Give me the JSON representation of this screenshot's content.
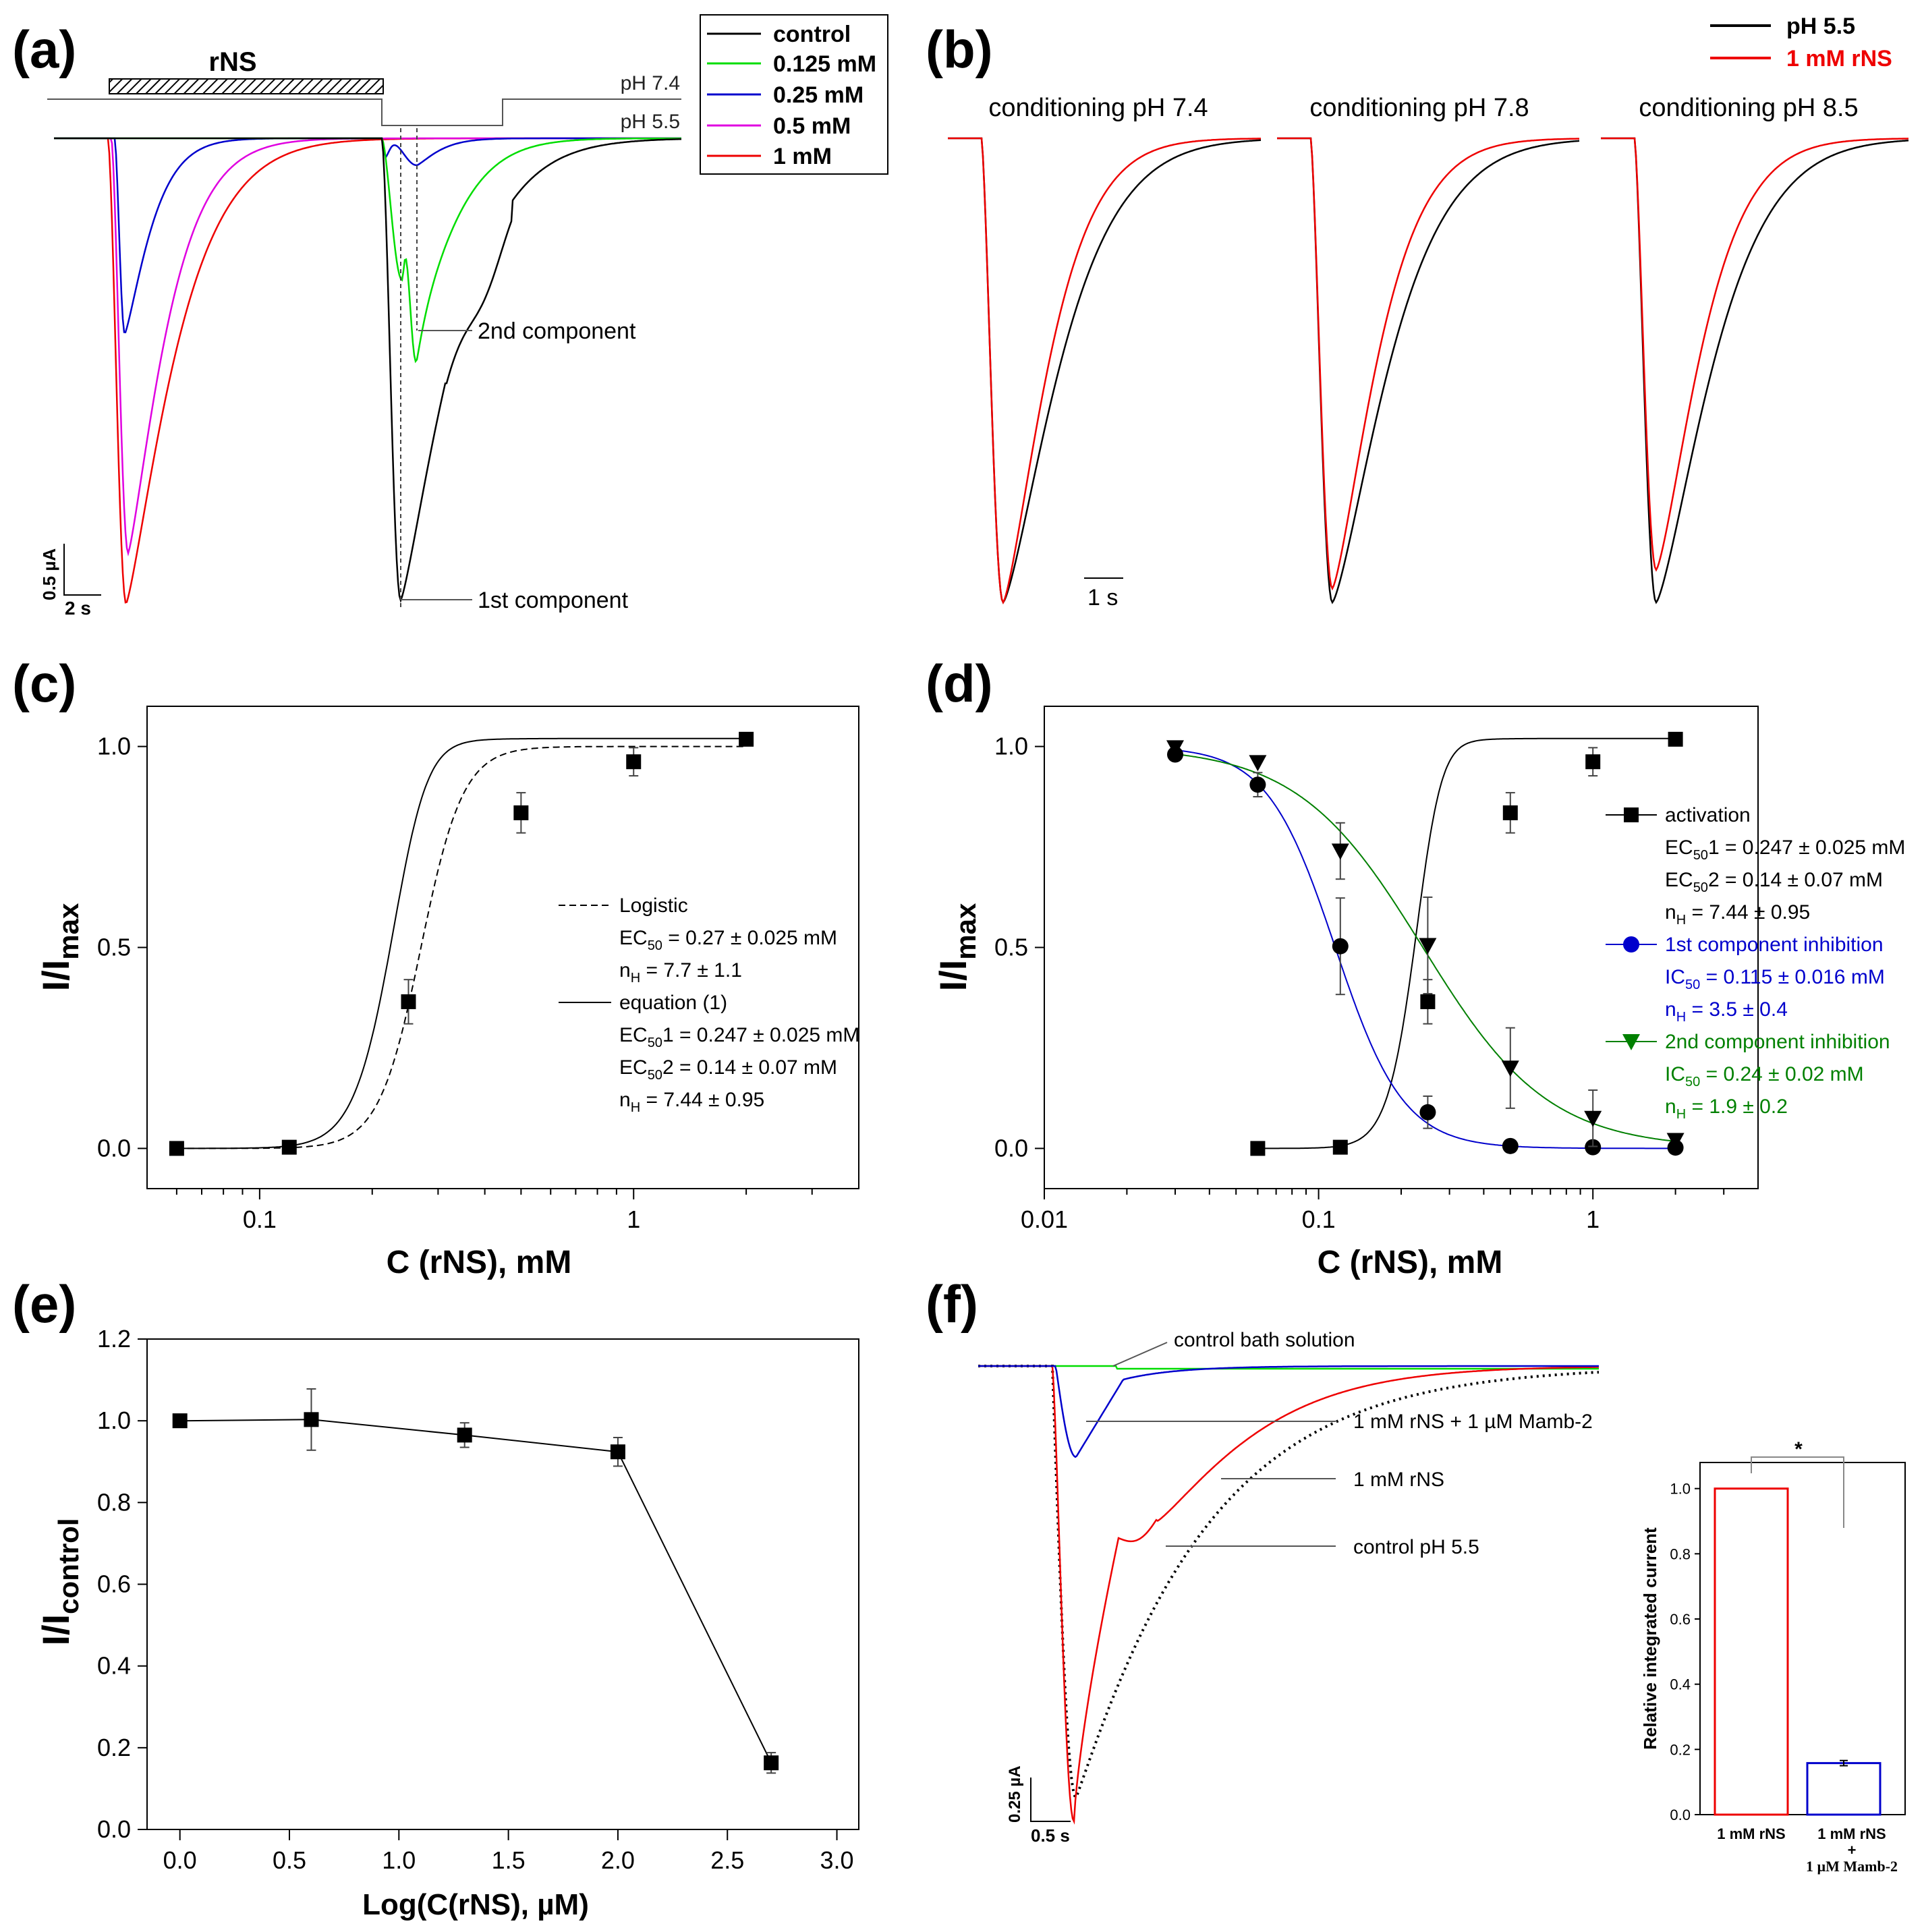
{
  "colors": {
    "black": "#000000",
    "green": "#00dd00",
    "blue": "#0000cc",
    "magenta": "#e000e0",
    "red": "#ee0000",
    "darkgreen": "#008000",
    "gray": "#888888"
  },
  "panels": {
    "a": {
      "label": "(a)",
      "drug_bar_label": "rNS",
      "ph_high": "pH 7.4",
      "ph_low": "pH 5.5",
      "legend": [
        {
          "name": "control",
          "color": "#000000"
        },
        {
          "name": "0.125 mM",
          "color": "#00dd00"
        },
        {
          "name": "0.25 mM",
          "color": "#0000cc"
        },
        {
          "name": "0.5 mM",
          "color": "#e000e0"
        },
        {
          "name": "1 mM",
          "color": "#ee0000"
        }
      ],
      "annotations": [
        "2nd component",
        "1st component"
      ],
      "scale_y": "0.5 µA",
      "scale_x": "2 s"
    },
    "b": {
      "label": "(b)",
      "legend": [
        {
          "name": "pH 5.5",
          "color": "#000000"
        },
        {
          "name": "1 mM rNS",
          "color": "#ee0000"
        }
      ],
      "titles": [
        "conditioning pH 7.4",
        "conditioning pH 7.8",
        "conditioning pH 8.5"
      ],
      "peak_ratios": [
        1.0,
        0.97,
        0.93
      ],
      "scale_x": "1 s"
    },
    "c": {
      "label": "(c)"
    },
    "d": {
      "label": "(d)"
    },
    "e": {
      "label": "(e)"
    },
    "f": {
      "label": "(f)",
      "annotations": [
        "control bath solution",
        "1 mM rNS + 1 µM Mamb-2",
        "1 mM rNS",
        "control pH 5.5"
      ],
      "scale_y": "0.25 µA",
      "scale_x": "0.5 s"
    }
  },
  "chart_data": [
    {
      "id": "c",
      "type": "scatter",
      "ylabel_main": "I/I",
      "ylabel_sub": "max",
      "xlabel": "C (rNS), mM",
      "xscale": "log",
      "xlim": [
        0.05,
        4
      ],
      "ylim": [
        -0.1,
        1.1
      ],
      "xticks": [
        0.1,
        1
      ],
      "xtick_labels": [
        "0.1",
        "1"
      ],
      "yticks": [
        0.0,
        0.5,
        1.0
      ],
      "ytick_labels": [
        "0.0",
        "0.5",
        "1.0"
      ],
      "x": [
        0.06,
        0.12,
        0.25,
        0.5,
        1,
        2
      ],
      "y": [
        0.0,
        0.003,
        0.365,
        0.835,
        0.962,
        1.018
      ],
      "err": [
        0,
        0,
        0.055,
        0.05,
        0.035,
        0
      ],
      "fits": [
        {
          "name": "Logistic",
          "style": "dashed",
          "ec50": 0.27,
          "nh": 7.7
        },
        {
          "name": "equation (1)",
          "style": "solid",
          "ec50_1": 0.247,
          "ec50_2": 0.14,
          "nh": 7.44
        }
      ],
      "legend_lines": [
        {
          "kind": "entry",
          "style": "dashed",
          "text": "Logistic"
        },
        {
          "kind": "sub",
          "main": "EC",
          "sub": "50",
          "rest": " = 0.27 ± 0.025 mM"
        },
        {
          "kind": "sub",
          "main": "n",
          "sub": "H",
          "rest": " = 7.7 ± 1.1"
        },
        {
          "kind": "entry",
          "style": "solid",
          "text": "equation (1)"
        },
        {
          "kind": "sub",
          "main": "EC",
          "sub": "50",
          "rest": "1 = 0.247 ± 0.025 mM"
        },
        {
          "kind": "sub",
          "main": "EC",
          "sub": "50",
          "rest": "2 = 0.14 ± 0.07 mM"
        },
        {
          "kind": "sub",
          "main": "n",
          "sub": "H",
          "rest": " = 7.44 ± 0.95"
        }
      ]
    },
    {
      "id": "d",
      "type": "scatter",
      "ylabel_main": "I/I",
      "ylabel_sub": "max",
      "xlabel": "C (rNS), mM",
      "xscale": "log",
      "xlim": [
        0.01,
        4
      ],
      "ylim": [
        -0.1,
        1.1
      ],
      "xticks": [
        0.01,
        0.1,
        1
      ],
      "xtick_labels": [
        "0.01",
        "0.1",
        "1"
      ],
      "yticks": [
        0.0,
        0.5,
        1.0
      ],
      "ytick_labels": [
        "0.0",
        "0.5",
        "1.0"
      ],
      "series": [
        {
          "name": "activation",
          "marker": "square",
          "color": "#000000",
          "x": [
            0.06,
            0.12,
            0.25,
            0.5,
            1,
            2
          ],
          "y": [
            0.0,
            0.003,
            0.365,
            0.835,
            0.962,
            1.018
          ],
          "err": [
            0,
            0,
            0.055,
            0.05,
            0.035,
            0
          ],
          "fit": {
            "model": "eq1",
            "ec50_1": 0.247,
            "ec50_2": 0.14,
            "nh": 7.44
          }
        },
        {
          "name": "1st component inhibition",
          "marker": "circle",
          "color": "#0000cc",
          "x": [
            0.03,
            0.06,
            0.12,
            0.25,
            0.5,
            1,
            2
          ],
          "y": [
            0.98,
            0.905,
            0.503,
            0.09,
            0.006,
            0.003,
            0.002
          ],
          "err": [
            0,
            0.03,
            0.12,
            0.04,
            0,
            0,
            0
          ],
          "fit": {
            "model": "inhibition",
            "ic50": 0.115,
            "nh": 3.5
          }
        },
        {
          "name": "2nd component inhibition",
          "marker": "triangle-down",
          "color": "#008000",
          "x": [
            0.03,
            0.06,
            0.12,
            0.25,
            0.5,
            1,
            2
          ],
          "y": [
            0.997,
            0.96,
            0.74,
            0.505,
            0.2,
            0.075,
            0.02
          ],
          "err": [
            0,
            0,
            0.07,
            0.12,
            0.1,
            0.07,
            0
          ],
          "fit": {
            "model": "inhibition",
            "ic50": 0.24,
            "nh": 1.9
          }
        }
      ],
      "legend_lines": [
        {
          "kind": "entry",
          "marker": "square",
          "color": "#000000",
          "text": "activation"
        },
        {
          "kind": "sub",
          "color": "#000000",
          "main": "EC",
          "sub": "50",
          "rest": "1 = 0.247 ± 0.025 mM"
        },
        {
          "kind": "sub",
          "color": "#000000",
          "main": "EC",
          "sub": "50",
          "rest": "2 = 0.14 ± 0.07 mM"
        },
        {
          "kind": "sub",
          "color": "#000000",
          "main": "n",
          "sub": "H",
          "rest": " = 7.44 ± 0.95"
        },
        {
          "kind": "entry",
          "marker": "circle",
          "color": "#0000cc",
          "text": "1st component inhibition"
        },
        {
          "kind": "sub",
          "color": "#0000cc",
          "main": "IC",
          "sub": "50",
          "rest": " = 0.115 ± 0.016 mM"
        },
        {
          "kind": "sub",
          "color": "#0000cc",
          "main": "n",
          "sub": "H",
          "rest": " = 3.5 ± 0.4"
        },
        {
          "kind": "entry",
          "marker": "triangle-down",
          "color": "#008000",
          "text": "2nd component inhibition"
        },
        {
          "kind": "sub",
          "color": "#008000",
          "main": "IC",
          "sub": "50",
          "rest": " = 0.24 ± 0.02 mM"
        },
        {
          "kind": "sub",
          "color": "#008000",
          "main": "n",
          "sub": "H",
          "rest": " = 1.9 ± 0.2"
        }
      ]
    },
    {
      "id": "e",
      "type": "line",
      "ylabel_main": "I/I",
      "ylabel_sub": "control",
      "xlabel": "Log(C(rNS), µM)",
      "xlim": [
        -0.15,
        3.1
      ],
      "ylim": [
        0.0,
        1.2
      ],
      "xticks": [
        0,
        0.5,
        1,
        1.5,
        2,
        2.5,
        3
      ],
      "xtick_labels": [
        "0.0",
        "0.5",
        "1.0",
        "1.5",
        "2.0",
        "2.5",
        "3.0"
      ],
      "yticks": [
        0,
        0.2,
        0.4,
        0.6,
        0.8,
        1.0,
        1.2
      ],
      "ytick_labels": [
        "0.0",
        "0.2",
        "0.4",
        "0.6",
        "0.8",
        "1.0",
        "1.2"
      ],
      "x": [
        0,
        0.6,
        1.3,
        2.0,
        2.7
      ],
      "y": [
        1.0,
        1.003,
        0.965,
        0.924,
        0.163
      ],
      "err": [
        0,
        0.075,
        0.03,
        0.035,
        0.025
      ]
    },
    {
      "id": "f_inset",
      "type": "bar",
      "ylabel": "Relative integrated current",
      "categories": [
        "1 mM rNS",
        "1 mM rNS + 1 µM Mamb-2"
      ],
      "category_lines": [
        [
          "1 mM rNS"
        ],
        [
          "1 mM rNS",
          "+",
          "1 µM Mamb-2"
        ]
      ],
      "values": [
        1.0,
        0.158
      ],
      "err": [
        0,
        0.008
      ],
      "colors": [
        "#ee0000",
        "#0000cc"
      ],
      "ylim": [
        0.0,
        1.08
      ],
      "yticks": [
        0,
        0.2,
        0.4,
        0.6,
        0.8,
        1.0
      ],
      "ytick_labels": [
        "0.0",
        "0.2",
        "0.4",
        "0.6",
        "0.8",
        "1.0"
      ],
      "significance": "*"
    }
  ]
}
